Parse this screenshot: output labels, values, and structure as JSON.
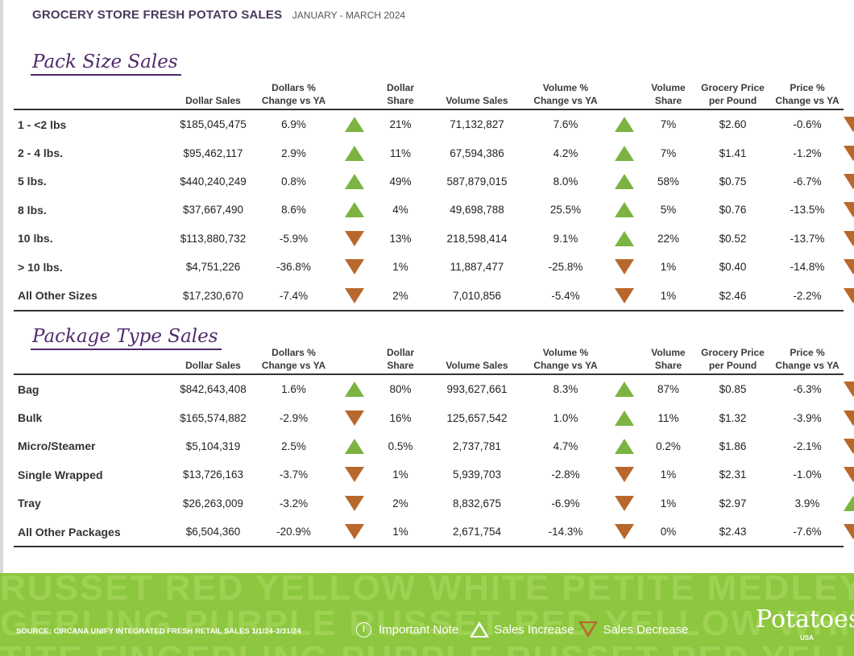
{
  "header": {
    "title": "GROCERY STORE  FRESH POTATO SALES",
    "period": "JANUARY - MARCH 2024"
  },
  "columns": [
    "",
    "Dollar Sales",
    "Dollars % Change vs YA",
    "",
    "Dollar Share",
    "Volume Sales",
    "Volume % Change vs YA",
    "",
    "Volume Share",
    "Grocery Price per Pound",
    "Price % Change vs YA",
    ""
  ],
  "sections": [
    {
      "title": "Pack Size Sales",
      "rows": [
        {
          "label": "1 - <2 lbs",
          "dollar_sales": "$185,045,475",
          "dollar_change": "6.9%",
          "dollar_trend": "up",
          "dollar_share": "21%",
          "volume_sales": "71,132,827",
          "volume_change": "7.6%",
          "volume_trend": "up",
          "volume_share": "7%",
          "price": "$2.60",
          "price_change": "-0.6%",
          "price_trend": "down"
        },
        {
          "label": "2 - 4 lbs.",
          "dollar_sales": "$95,462,117",
          "dollar_change": "2.9%",
          "dollar_trend": "up",
          "dollar_share": "11%",
          "volume_sales": "67,594,386",
          "volume_change": "4.2%",
          "volume_trend": "up",
          "volume_share": "7%",
          "price": "$1.41",
          "price_change": "-1.2%",
          "price_trend": "down"
        },
        {
          "label": "5 lbs.",
          "dollar_sales": "$440,240,249",
          "dollar_change": "0.8%",
          "dollar_trend": "up",
          "dollar_share": "49%",
          "volume_sales": "587,879,015",
          "volume_change": "8.0%",
          "volume_trend": "up",
          "volume_share": "58%",
          "price": "$0.75",
          "price_change": "-6.7%",
          "price_trend": "down"
        },
        {
          "label": "8 lbs.",
          "dollar_sales": "$37,667,490",
          "dollar_change": "8.6%",
          "dollar_trend": "up",
          "dollar_share": "4%",
          "volume_sales": "49,698,788",
          "volume_change": "25.5%",
          "volume_trend": "up",
          "volume_share": "5%",
          "price": "$0.76",
          "price_change": "-13.5%",
          "price_trend": "down"
        },
        {
          "label": "10 lbs.",
          "dollar_sales": "$113,880,732",
          "dollar_change": "-5.9%",
          "dollar_trend": "down",
          "dollar_share": "13%",
          "volume_sales": "218,598,414",
          "volume_change": "9.1%",
          "volume_trend": "up",
          "volume_share": "22%",
          "price": "$0.52",
          "price_change": "-13.7%",
          "price_trend": "down"
        },
        {
          "label": "> 10 lbs.",
          "dollar_sales": "$4,751,226",
          "dollar_change": "-36.8%",
          "dollar_trend": "down",
          "dollar_share": "1%",
          "volume_sales": "11,887,477",
          "volume_change": "-25.8%",
          "volume_trend": "down",
          "volume_share": "1%",
          "price": "$0.40",
          "price_change": "-14.8%",
          "price_trend": "down"
        },
        {
          "label": "All Other Sizes",
          "dollar_sales": "$17,230,670",
          "dollar_change": "-7.4%",
          "dollar_trend": "down",
          "dollar_share": "2%",
          "volume_sales": "7,010,856",
          "volume_change": "-5.4%",
          "volume_trend": "down",
          "volume_share": "1%",
          "price": "$2.46",
          "price_change": "-2.2%",
          "price_trend": "down"
        }
      ]
    },
    {
      "title": "Package Type Sales",
      "rows": [
        {
          "label": "Bag",
          "dollar_sales": "$842,643,408",
          "dollar_change": "1.6%",
          "dollar_trend": "up",
          "dollar_share": "80%",
          "volume_sales": "993,627,661",
          "volume_change": "8.3%",
          "volume_trend": "up",
          "volume_share": "87%",
          "price": "$0.85",
          "price_change": "-6.3%",
          "price_trend": "down"
        },
        {
          "label": "Bulk",
          "dollar_sales": "$165,574,882",
          "dollar_change": "-2.9%",
          "dollar_trend": "down",
          "dollar_share": "16%",
          "volume_sales": "125,657,542",
          "volume_change": "1.0%",
          "volume_trend": "up",
          "volume_share": "11%",
          "price": "$1.32",
          "price_change": "-3.9%",
          "price_trend": "down"
        },
        {
          "label": "Micro/Steamer",
          "dollar_sales": "$5,104,319",
          "dollar_change": "2.5%",
          "dollar_trend": "up",
          "dollar_share": "0.5%",
          "volume_sales": "2,737,781",
          "volume_change": "4.7%",
          "volume_trend": "up",
          "volume_share": "0.2%",
          "price": "$1.86",
          "price_change": "-2.1%",
          "price_trend": "down"
        },
        {
          "label": "Single Wrapped",
          "dollar_sales": "$13,726,163",
          "dollar_change": "-3.7%",
          "dollar_trend": "down",
          "dollar_share": "1%",
          "volume_sales": "5,939,703",
          "volume_change": "-2.8%",
          "volume_trend": "down",
          "volume_share": "1%",
          "price": "$2.31",
          "price_change": "-1.0%",
          "price_trend": "down"
        },
        {
          "label": "Tray",
          "dollar_sales": "$26,263,009",
          "dollar_change": "-3.2%",
          "dollar_trend": "down",
          "dollar_share": "2%",
          "volume_sales": "8,832,675",
          "volume_change": "-6.9%",
          "volume_trend": "down",
          "volume_share": "1%",
          "price": "$2.97",
          "price_change": "3.9%",
          "price_trend": "up"
        },
        {
          "label": "All Other Packages",
          "dollar_sales": "$6,504,360",
          "dollar_change": "-20.9%",
          "dollar_trend": "down",
          "dollar_share": "1%",
          "volume_sales": "2,671,754",
          "volume_change": "-14.3%",
          "volume_trend": "down",
          "volume_share": "0%",
          "price": "$2.43",
          "price_change": "-7.6%",
          "price_trend": "down"
        }
      ]
    }
  ],
  "footer": {
    "watermark_lines": [
      "RUSSET RED YELLOW WHITE PETITE MEDLEY FIN",
      "GERLING PURPLE RUSSET RED YELLOW WHITE",
      "TITE FINGERLING PURPLE RUSSET RED YELLOW W"
    ],
    "source": "SOURCE: CIRCANA UNIFY INTEGRATED FRESH RETAIL SALES 1/1/24-3/31/24",
    "legend_note": "Important Note",
    "legend_increase": "Sales Increase",
    "legend_decrease": "Sales Decrease",
    "logo_text": "Potatoes",
    "logo_sub": "USA",
    "colors": {
      "band": "#8dc63f",
      "increase": "#7cb342",
      "decrease": "#b8682c",
      "title": "#4e2a6b"
    }
  }
}
